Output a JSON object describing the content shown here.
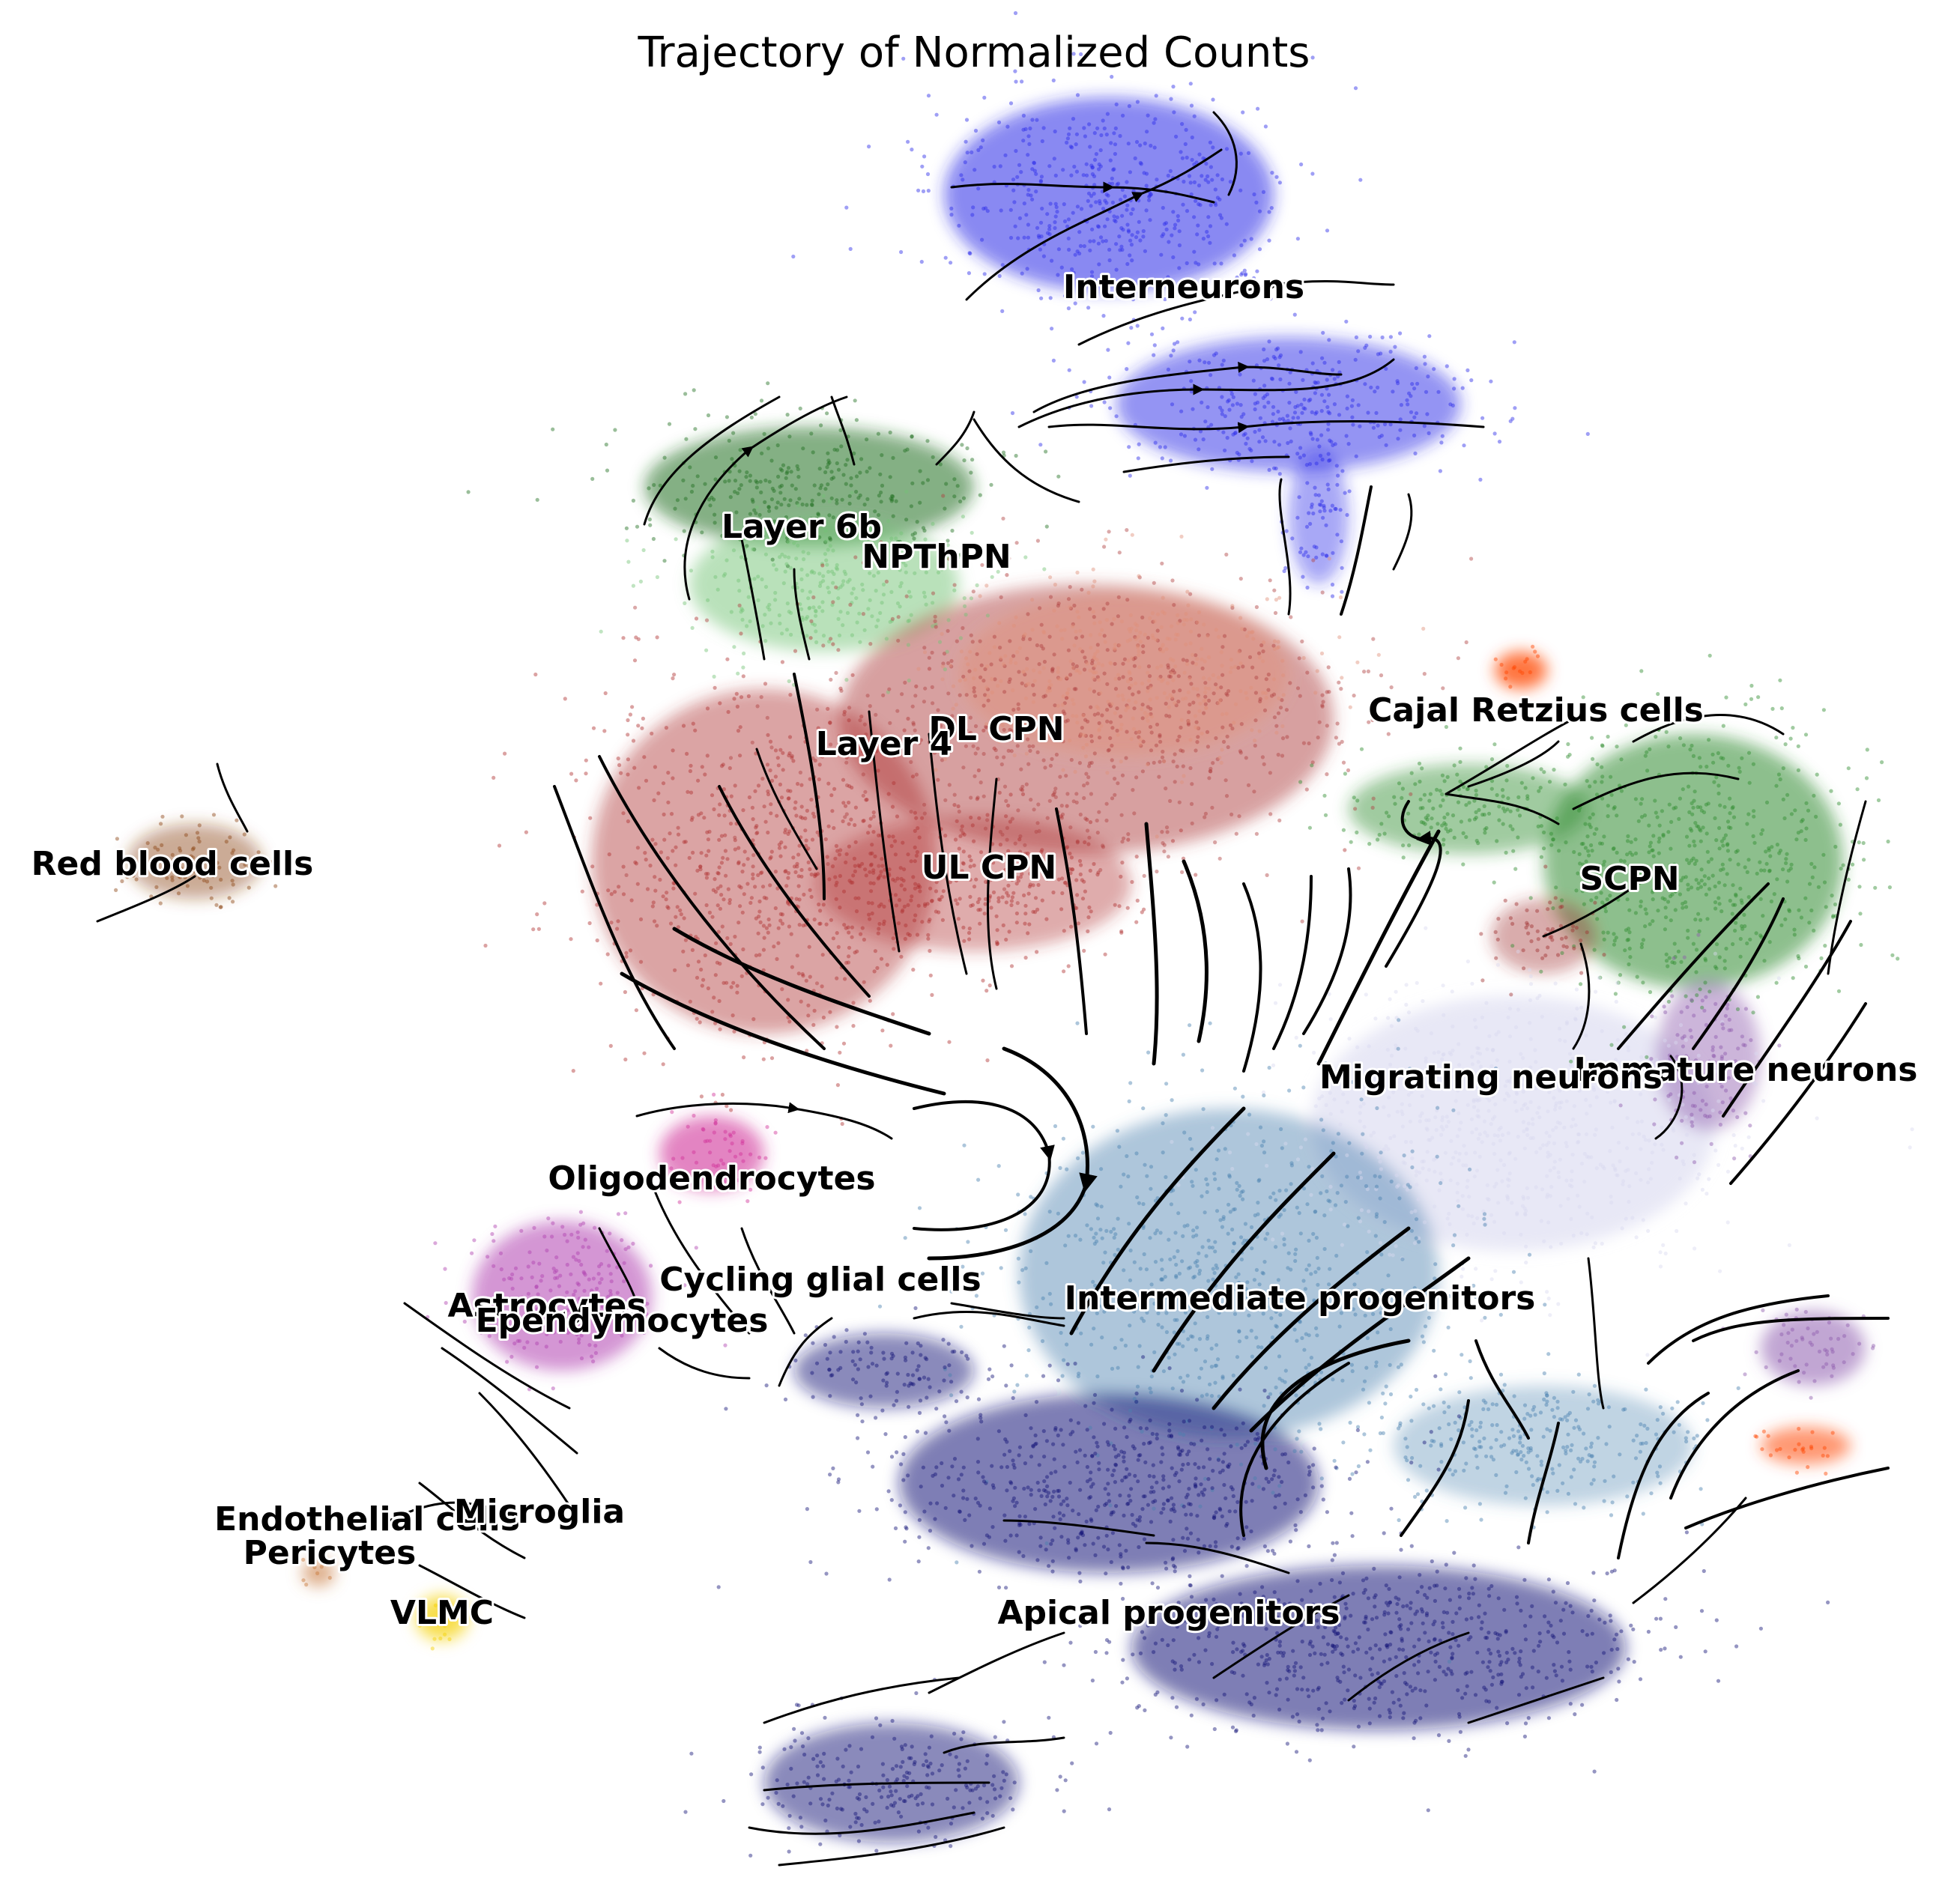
{
  "chart_data": {
    "type": "scatter",
    "title": "Trajectory of Normalized Counts",
    "xlabel": "",
    "ylabel": "",
    "axes": "off",
    "grid": false,
    "legend": "none (cluster labels drawn on data)",
    "overlay": "velocity streamlines with arrows (black)",
    "clusters": [
      {
        "name": "Interneurons",
        "color": "#1f1fe0",
        "center": [
          1580,
          380
        ]
      },
      {
        "name": "Layer 6b",
        "color": "#1e6e1e",
        "center": [
          1070,
          700
        ]
      },
      {
        "name": "NPThPN",
        "color": "#74c476",
        "center": [
          1250,
          740
        ]
      },
      {
        "name": "DL CPN",
        "color": "#a8383a",
        "center": [
          1330,
          970
        ]
      },
      {
        "name": "Layer 4",
        "color": "#e0907a",
        "center": [
          1180,
          990
        ]
      },
      {
        "name": "UL CPN",
        "color": "#b03030",
        "center": [
          1320,
          1155
        ]
      },
      {
        "name": "Red blood cells",
        "color": "#8b4513",
        "center": [
          230,
          1150
        ]
      },
      {
        "name": "Cajal Retzius cells",
        "color": "#ff4500",
        "center": [
          2050,
          945
        ]
      },
      {
        "name": "SCPN",
        "color": "#2e8b2e",
        "center": [
          2175,
          1170
        ]
      },
      {
        "name": "Migrating neurons",
        "color": "#e3e3f3",
        "center": [
          1990,
          1435
        ]
      },
      {
        "name": "Immature neurons",
        "color": "#8e5bae",
        "center": [
          2330,
          1425
        ]
      },
      {
        "name": "Oligodendrocytes",
        "color": "#d0309a",
        "center": [
          950,
          1570
        ]
      },
      {
        "name": "Cycling glial cells",
        "color": "#6a5acd",
        "center": [
          1095,
          1705
        ]
      },
      {
        "name": "Astrocytes",
        "color": "#b040b0",
        "center": [
          730,
          1740
        ]
      },
      {
        "name": "Ependymocytes",
        "color": "#9a329a",
        "center": [
          830,
          1760
        ]
      },
      {
        "name": "Intermediate progenitors",
        "color": "#4a80b0",
        "center": [
          1735,
          1730
        ]
      },
      {
        "name": "Endothelial cells",
        "color": "#f0d060",
        "center": [
          490,
          2025
        ]
      },
      {
        "name": "Microglia",
        "color": "#f4a6c0",
        "center": [
          720,
          2015
        ]
      },
      {
        "name": "Pericytes",
        "color": "#c8783a",
        "center": [
          440,
          2070
        ]
      },
      {
        "name": "VLMC",
        "color": "#f5d000",
        "center": [
          590,
          2150
        ]
      },
      {
        "name": "Apical progenitors",
        "color": "#141478",
        "center": [
          1560,
          2150
        ]
      }
    ]
  }
}
